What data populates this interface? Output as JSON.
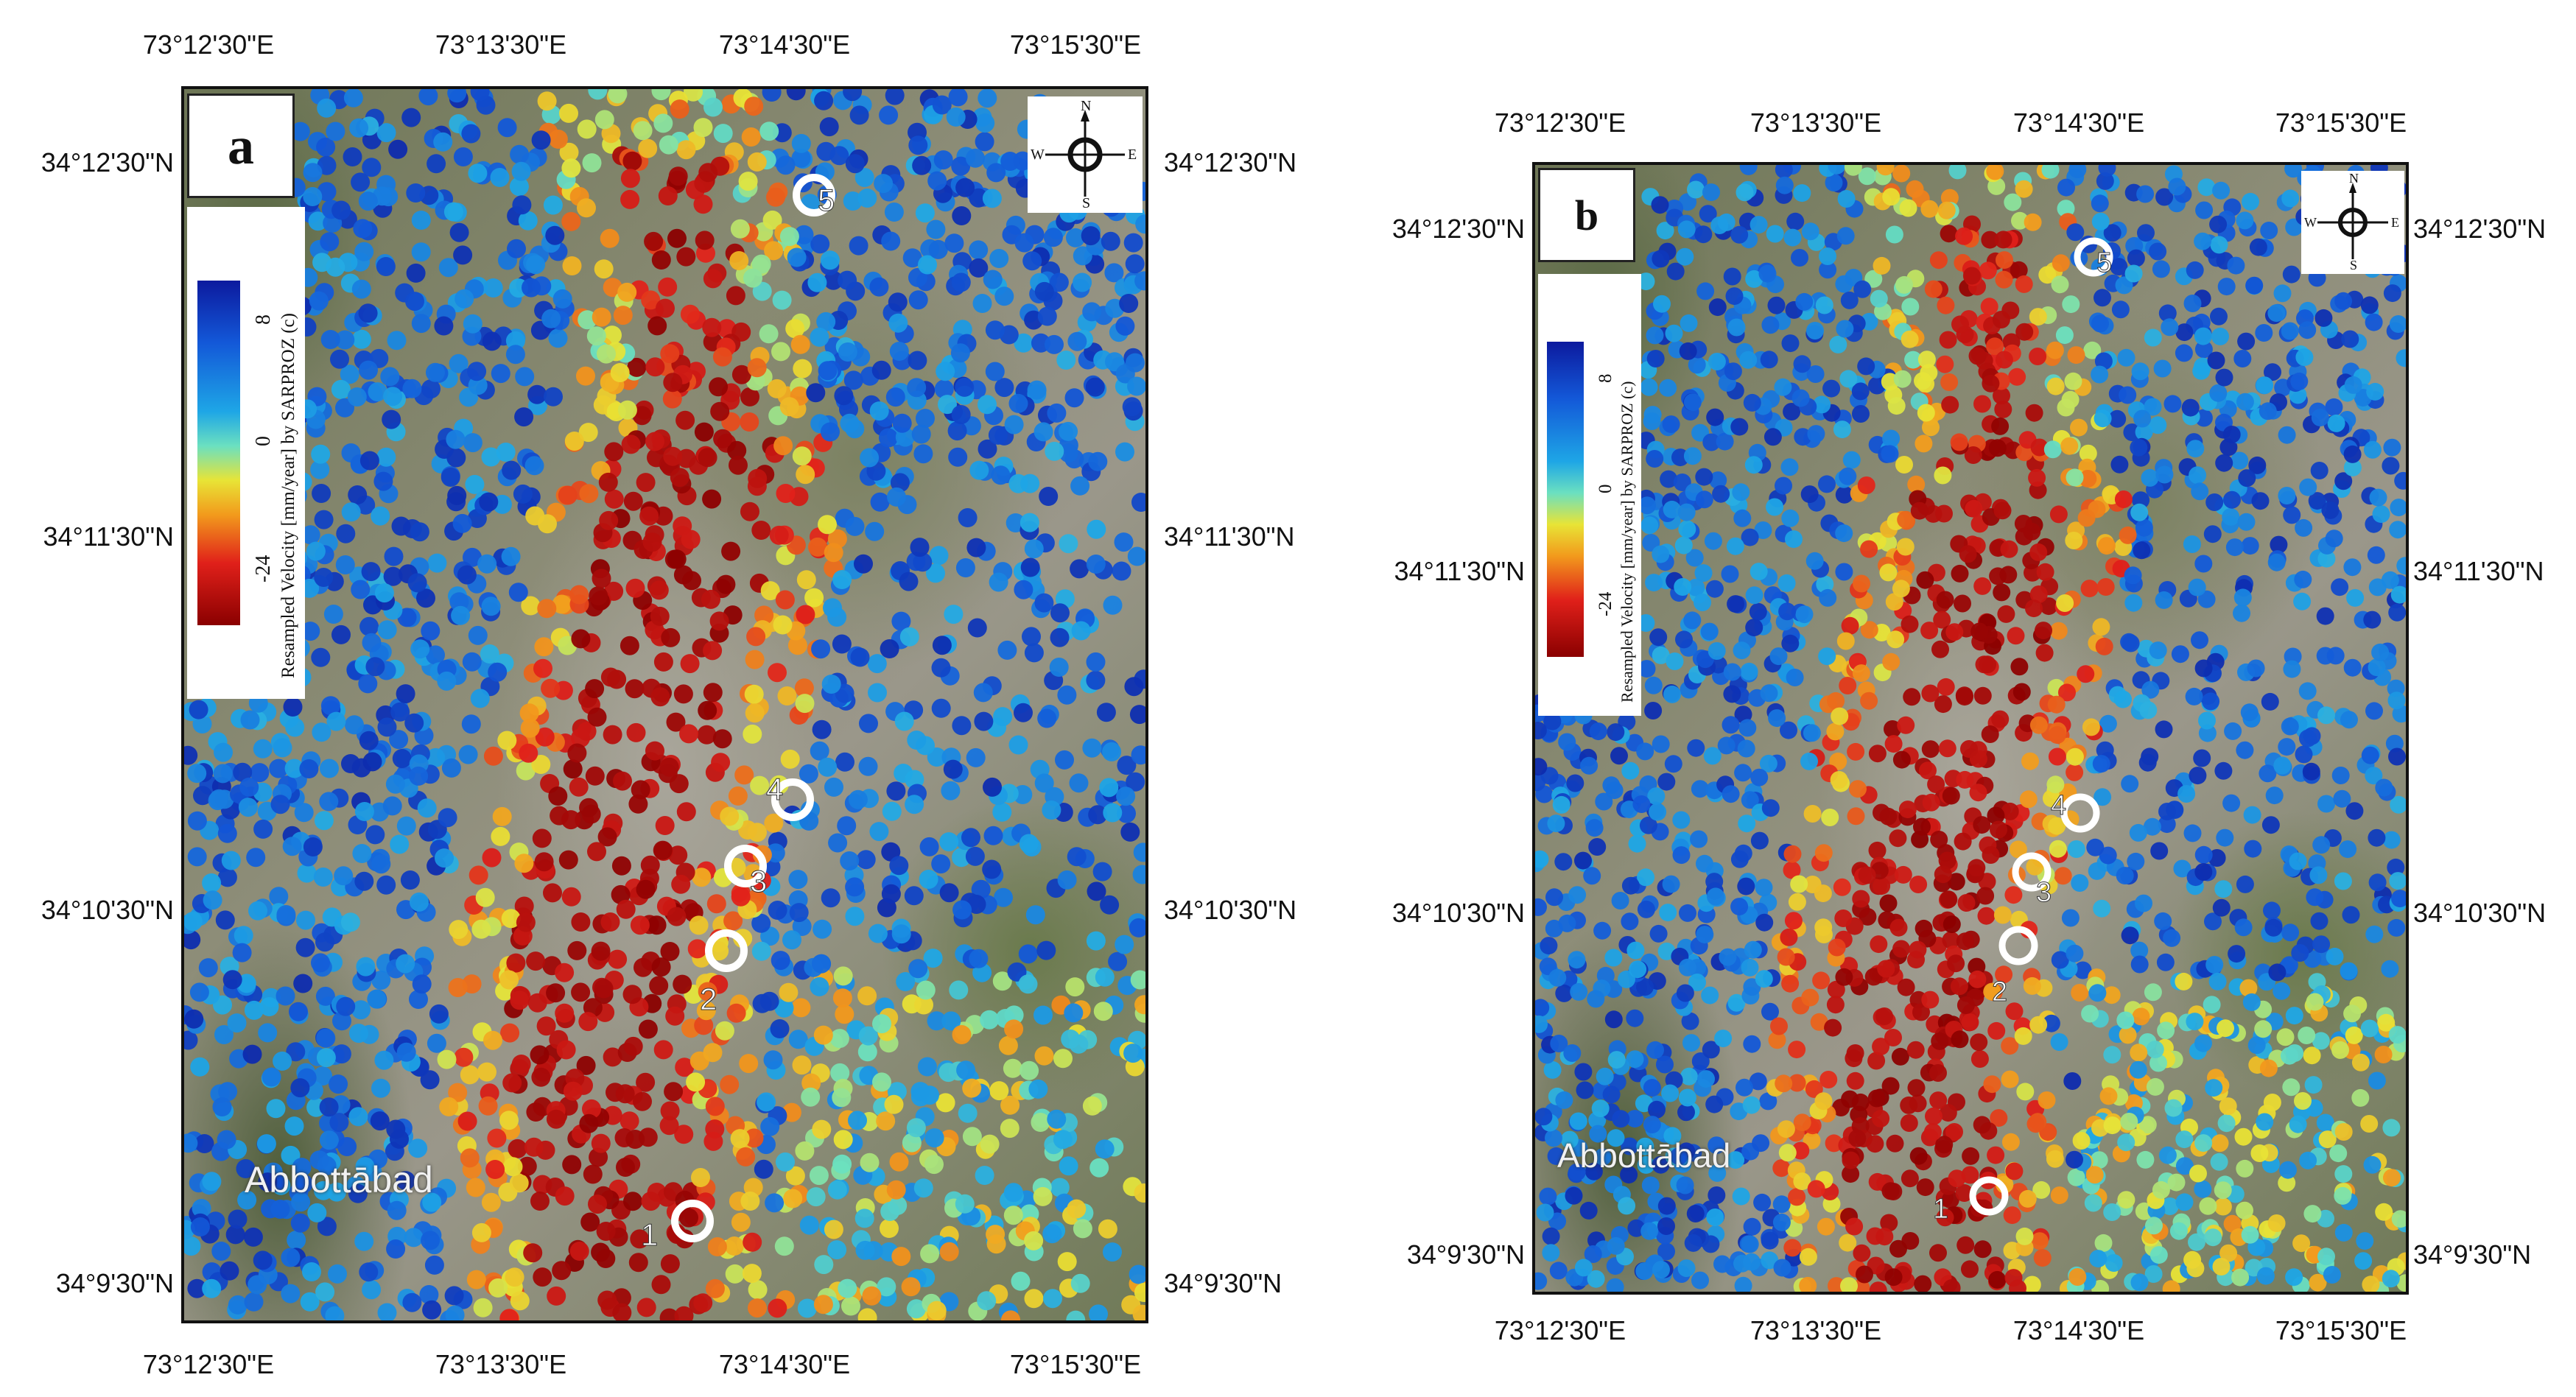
{
  "panels": [
    {
      "id": "a",
      "label": "a",
      "top_coords": [
        "73°12'30\"E",
        "73°13'30\"E",
        "73°14'30\"E",
        "73°15'30\"E"
      ],
      "bottom_coords": [
        "73°12'30\"E",
        "73°13'30\"E",
        "73°14'30\"E",
        "73°15'30\"E"
      ],
      "left_coords": [
        "34°12'30\"N",
        "34°11'30\"N",
        "34°10'30\"N",
        "34°9'30\"N"
      ],
      "right_coords": [
        "34°12'30\"N",
        "34°11'30\"N",
        "34°10'30\"N",
        "34°9'30\"N"
      ],
      "place_name": "Abbottābad",
      "site_labels": [
        "1",
        "2",
        "3",
        "4",
        "5"
      ]
    },
    {
      "id": "b",
      "label": "b",
      "top_coords": [
        "73°12'30\"E",
        "73°13'30\"E",
        "73°14'30\"E",
        "73°15'30\"E"
      ],
      "bottom_coords": [
        "73°12'30\"E",
        "73°13'30\"E",
        "73°14'30\"E",
        "73°15'30\"E"
      ],
      "left_coords": [
        "34°12'30\"N",
        "34°11'30\"N",
        "34°10'30\"N",
        "34°9'30\"N"
      ],
      "right_coords": [
        "34°12'30\"N",
        "34°11'30\"N",
        "34°10'30\"N",
        "34°9'30\"N"
      ],
      "place_name": "Abbottābad",
      "site_labels": [
        "1",
        "2",
        "3",
        "4",
        "5"
      ]
    }
  ],
  "legend": {
    "title": "Resampled Velocity [mm/year] by SARPROZ (c)",
    "ticks": [
      "8",
      "0",
      "-24"
    ]
  },
  "compass": {
    "n": "N",
    "s": "S",
    "e": "E",
    "w": "W"
  },
  "colors": {
    "subsiding": "#8a0000",
    "stable_low": "#1ea6e6",
    "uplift_high": "#0c1a9e",
    "transition": "#e8e436"
  }
}
